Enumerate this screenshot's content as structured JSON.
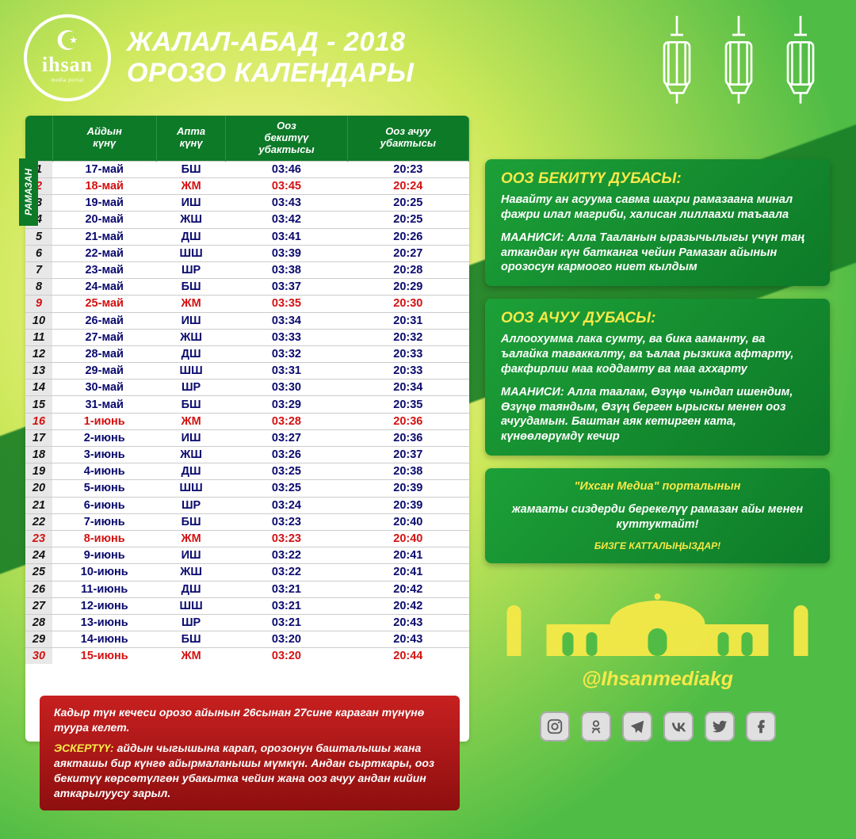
{
  "header": {
    "logo_main": "ihsan",
    "logo_sub": "media portal",
    "title": "ЖАЛАЛ-АБАД - 2018",
    "subtitle": "ОРОЗО КАЛЕНДАРЫ"
  },
  "ramazan_label": "РАМАЗАН",
  "columns": {
    "c1": "Айдын\nкүнү",
    "c2": "Апта\nкүнү",
    "c3": "Ооз\nбекитүү\nубактысы",
    "c4": "Ооз ачуу\nубактысы"
  },
  "rows": [
    {
      "n": "1",
      "date": "17-май",
      "day": "БШ",
      "suhoor": "03:46",
      "iftar": "20:23",
      "friday": false
    },
    {
      "n": "2",
      "date": "18-май",
      "day": "ЖМ",
      "suhoor": "03:45",
      "iftar": "20:24",
      "friday": true
    },
    {
      "n": "3",
      "date": "19-май",
      "day": "ИШ",
      "suhoor": "03:43",
      "iftar": "20:25",
      "friday": false
    },
    {
      "n": "4",
      "date": "20-май",
      "day": "ЖШ",
      "suhoor": "03:42",
      "iftar": "20:25",
      "friday": false
    },
    {
      "n": "5",
      "date": "21-май",
      "day": "ДШ",
      "suhoor": "03:41",
      "iftar": "20:26",
      "friday": false
    },
    {
      "n": "6",
      "date": "22-май",
      "day": "ШШ",
      "suhoor": "03:39",
      "iftar": "20:27",
      "friday": false
    },
    {
      "n": "7",
      "date": "23-май",
      "day": "ШР",
      "suhoor": "03:38",
      "iftar": "20:28",
      "friday": false
    },
    {
      "n": "8",
      "date": "24-май",
      "day": "БШ",
      "suhoor": "03:37",
      "iftar": "20:29",
      "friday": false
    },
    {
      "n": "9",
      "date": "25-май",
      "day": "ЖМ",
      "suhoor": "03:35",
      "iftar": "20:30",
      "friday": true
    },
    {
      "n": "10",
      "date": "26-май",
      "day": "ИШ",
      "suhoor": "03:34",
      "iftar": "20:31",
      "friday": false
    },
    {
      "n": "11",
      "date": "27-май",
      "day": "ЖШ",
      "suhoor": "03:33",
      "iftar": "20:32",
      "friday": false
    },
    {
      "n": "12",
      "date": "28-май",
      "day": "ДШ",
      "suhoor": "03:32",
      "iftar": "20:33",
      "friday": false
    },
    {
      "n": "13",
      "date": "29-май",
      "day": "ШШ",
      "suhoor": "03:31",
      "iftar": "20:33",
      "friday": false
    },
    {
      "n": "14",
      "date": "30-май",
      "day": "ШР",
      "suhoor": "03:30",
      "iftar": "20:34",
      "friday": false
    },
    {
      "n": "15",
      "date": "31-май",
      "day": "БШ",
      "suhoor": "03:29",
      "iftar": "20:35",
      "friday": false
    },
    {
      "n": "16",
      "date": "1-июнь",
      "day": "ЖМ",
      "suhoor": "03:28",
      "iftar": "20:36",
      "friday": true
    },
    {
      "n": "17",
      "date": "2-июнь",
      "day": "ИШ",
      "suhoor": "03:27",
      "iftar": "20:36",
      "friday": false
    },
    {
      "n": "18",
      "date": "3-июнь",
      "day": "ЖШ",
      "suhoor": "03:26",
      "iftar": "20:37",
      "friday": false
    },
    {
      "n": "19",
      "date": "4-июнь",
      "day": "ДШ",
      "suhoor": "03:25",
      "iftar": "20:38",
      "friday": false
    },
    {
      "n": "20",
      "date": "5-июнь",
      "day": "ШШ",
      "suhoor": "03:25",
      "iftar": "20:39",
      "friday": false
    },
    {
      "n": "21",
      "date": "6-июнь",
      "day": "ШР",
      "suhoor": "03:24",
      "iftar": "20:39",
      "friday": false
    },
    {
      "n": "22",
      "date": "7-июнь",
      "day": "БШ",
      "suhoor": "03:23",
      "iftar": "20:40",
      "friday": false
    },
    {
      "n": "23",
      "date": "8-июнь",
      "day": "ЖМ",
      "suhoor": "03:23",
      "iftar": "20:40",
      "friday": true
    },
    {
      "n": "24",
      "date": "9-июнь",
      "day": "ИШ",
      "suhoor": "03:22",
      "iftar": "20:41",
      "friday": false
    },
    {
      "n": "25",
      "date": "10-июнь",
      "day": "ЖШ",
      "suhoor": "03:22",
      "iftar": "20:41",
      "friday": false
    },
    {
      "n": "26",
      "date": "11-июнь",
      "day": "ДШ",
      "suhoor": "03:21",
      "iftar": "20:42",
      "friday": false
    },
    {
      "n": "27",
      "date": "12-июнь",
      "day": "ШШ",
      "suhoor": "03:21",
      "iftar": "20:42",
      "friday": false
    },
    {
      "n": "28",
      "date": "13-июнь",
      "day": "ШР",
      "suhoor": "03:21",
      "iftar": "20:43",
      "friday": false
    },
    {
      "n": "29",
      "date": "14-июнь",
      "day": "БШ",
      "suhoor": "03:20",
      "iftar": "20:43",
      "friday": false
    },
    {
      "n": "30",
      "date": "15-июнь",
      "day": "ЖМ",
      "suhoor": "03:20",
      "iftar": "20:44",
      "friday": true
    }
  ],
  "panel1": {
    "title": "ООЗ БЕКИТҮҮ ДУБАСЫ:",
    "body1": "Навайту ан асуума савма шахри рамазаана минал фажри илал магриби, халисан лиллаахи таъаала",
    "label2": "МААНИСИ:",
    "body2": "Алла Тааланын ыразычылыгы үчүн таң аткандан күн батканга чейин Рамазан айынын орозосун кармоого ниет кылдым"
  },
  "panel2": {
    "title": "ООЗ АЧУУ ДУБАСЫ:",
    "body1": "Аллоохумма лака сумту, ва бика ааманту, ва ъалайка таваккалту, ва ъалаа рызкика афтарту, факфирлии маа коддамту ва маа аххарту",
    "label2": "МААНИСИ:",
    "body2": "Алла таалам, Өзүңө чындап ишендим, Өзүңө таяндым, Өзүң берген ырыскы менен ооз ачуудамын. Баштан аяк кетирген ката, күнөөлөрүмдү кечир"
  },
  "panel3": {
    "line1": "\"Ихсан Медиа\" порталынын",
    "line2": "жамааты сиздерди берекелүү рамазан айы менен куттуктайт!",
    "line3": "БИЗГЕ КАТТАЛЫҢЫЗДАР!"
  },
  "handle": "@Ihsanmediakg",
  "footer": {
    "p1": "Кадыр түн кечеси орозо айынын 26сынан 27сине караган түнүнө туура келет.",
    "label": "ЭСКЕРТҮҮ:",
    "p2": "айдын чыгышына карап, орозонун башталышы жана аякташы бир күнгө айырмаланышы мүмкүн. Андан сырткары, ооз бекитүү көрсөтүлгөн убакытка чейин жана ооз ачуу андан кийин аткарылуусу зарыл."
  },
  "colors": {
    "green_dark": "#0d7a28",
    "green": "#1da038",
    "yellow": "#f6e948",
    "red_text": "#d41111",
    "blue_text": "#0a0a6e",
    "red_panel": "#c72020",
    "red_panel_dark": "#8e0f0f"
  }
}
